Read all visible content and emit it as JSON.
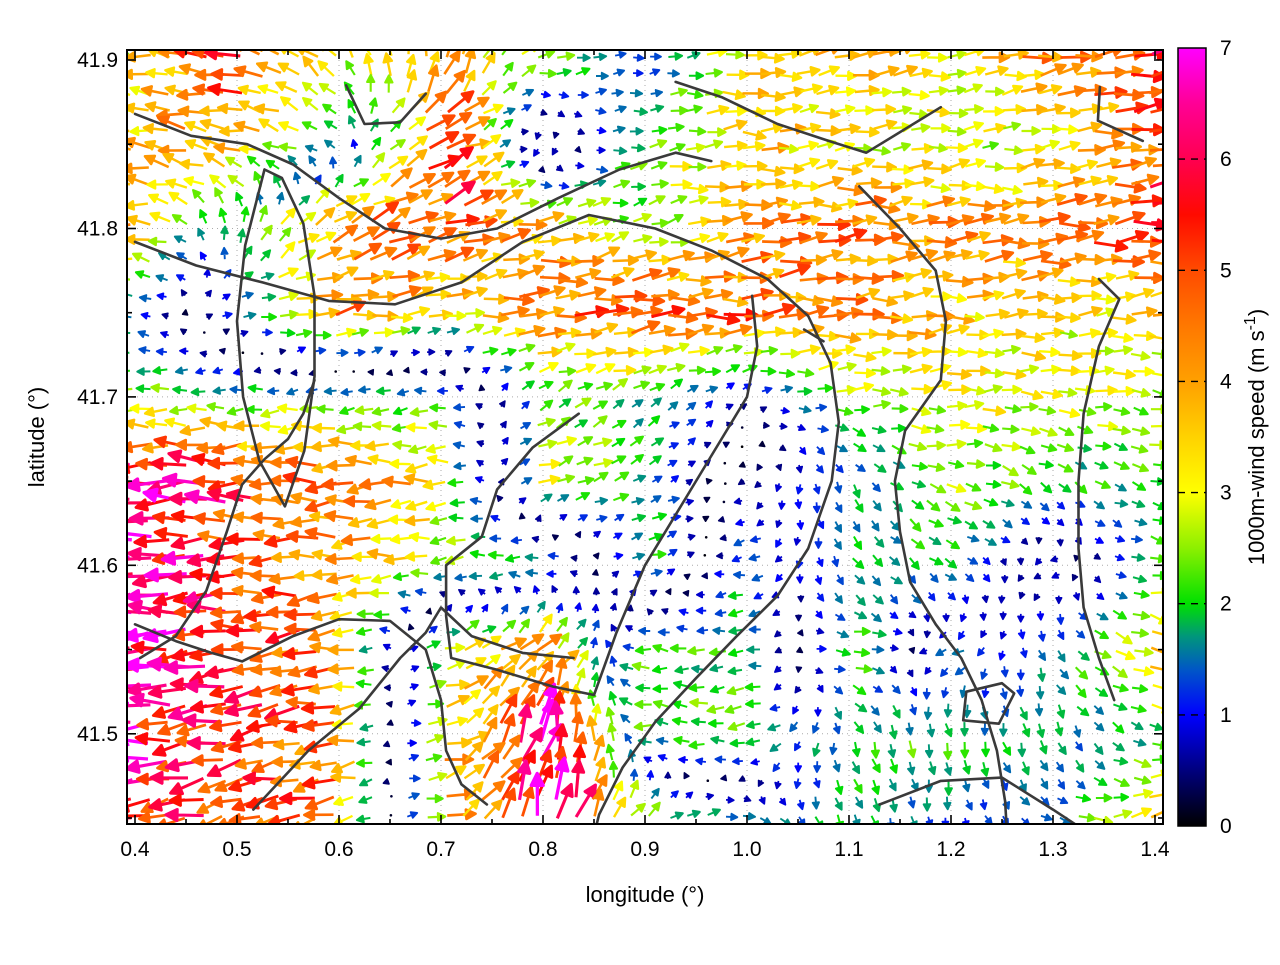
{
  "figure": {
    "background": "#ffffff",
    "xlabel": "longitude (°)",
    "ylabel": "latitude (°)",
    "colorbar_label_prefix": "1000m-wind speed (m s",
    "colorbar_label_sup": "-1",
    "colorbar_label_suffix": ")"
  },
  "chart_data": {
    "type": "quiver",
    "title": "",
    "xlabel": "longitude (°)",
    "ylabel": "latitude (°)",
    "xlim": [
      0.4,
      1.4
    ],
    "ylim": [
      41.45,
      41.9
    ],
    "grid": true,
    "x_ticks": {
      "values": [
        0.4,
        0.5,
        0.6,
        0.7,
        0.8,
        0.9,
        1.0,
        1.1,
        1.2,
        1.3,
        1.4
      ],
      "labels": [
        "0.4",
        "0.5",
        "0.6",
        "0.7",
        "0.8",
        "0.9",
        "1.0",
        "1.1",
        "1.2",
        "1.3",
        "1.4"
      ]
    },
    "y_ticks": {
      "values": [
        41.5,
        41.6,
        41.7,
        41.8,
        41.9
      ],
      "labels": [
        "41.5",
        "41.6",
        "41.7",
        "41.8",
        "41.9"
      ]
    },
    "minor_tick_step": 0.05,
    "colorbar": {
      "label": "1000m-wind speed (m s⁻¹)",
      "min": 0,
      "max": 7,
      "ticks": [
        0,
        1,
        2,
        3,
        4,
        5,
        6,
        7
      ],
      "colormap": [
        [
          0,
          "#000000"
        ],
        [
          0.5,
          "#00007d"
        ],
        [
          1,
          "#0000ff"
        ],
        [
          1.4,
          "#0055c8"
        ],
        [
          1.7,
          "#00957d"
        ],
        [
          2,
          "#00e000"
        ],
        [
          2.5,
          "#8cf000"
        ],
        [
          3,
          "#ffff00"
        ],
        [
          3.5,
          "#ffd200"
        ],
        [
          4,
          "#ffa000"
        ],
        [
          4.5,
          "#ff7800"
        ],
        [
          5,
          "#ff4b00"
        ],
        [
          5.5,
          "#ff0a00"
        ],
        [
          6,
          "#ff0050"
        ],
        [
          6.5,
          "#ff0096"
        ],
        [
          7,
          "#ff00ff"
        ]
      ]
    },
    "wind_grid": {
      "comment": "coarse (u,v) wind components in m/s read from the arrows; lon columns x lat rows",
      "lons": [
        0.4,
        0.5,
        0.6,
        0.7,
        0.8,
        0.9,
        1.0,
        1.1,
        1.2,
        1.3,
        1.4
      ],
      "lats": [
        41.9,
        41.85,
        41.8,
        41.75,
        41.7,
        41.65,
        41.6,
        41.55,
        41.5,
        41.45
      ],
      "uv": [
        [
          [
            -3,
            0.3
          ],
          [
            -5,
            0.8
          ],
          [
            -2,
            2.5
          ],
          [
            1,
            4
          ],
          [
            2.5,
            0.5
          ],
          [
            1,
            0.2
          ],
          [
            3.5,
            0.2
          ],
          [
            3.5,
            0.5
          ],
          [
            3,
            0.4
          ],
          [
            4.5,
            0.6
          ],
          [
            5.5,
            0.8
          ]
        ],
        [
          [
            -3.5,
            0.3
          ],
          [
            -4,
            0.8
          ],
          [
            -1.2,
            0.8
          ],
          [
            5,
            2.5
          ],
          [
            -1,
            -0.8
          ],
          [
            2.5,
            0.3
          ],
          [
            3.5,
            0.1
          ],
          [
            3,
            0.3
          ],
          [
            2.5,
            0.3
          ],
          [
            3,
            0.4
          ],
          [
            5,
            0.5
          ]
        ],
        [
          [
            -4,
            0.3
          ],
          [
            0.3,
            2.2
          ],
          [
            4,
            2
          ],
          [
            4.5,
            1.5
          ],
          [
            3.5,
            0.8
          ],
          [
            2.2,
            0.8
          ],
          [
            4,
            0.3
          ],
          [
            4.5,
            0.3
          ],
          [
            4,
            0.2
          ],
          [
            4.5,
            0.3
          ],
          [
            5,
            0.4
          ]
        ],
        [
          [
            -1.2,
            0.2
          ],
          [
            1.5,
            0.3
          ],
          [
            4.5,
            0.8
          ],
          [
            3,
            0.5
          ],
          [
            4.5,
            0.5
          ],
          [
            5,
            0.5
          ],
          [
            4.5,
            0.4
          ],
          [
            4,
            0.3
          ],
          [
            3.5,
            0.3
          ],
          [
            3,
            0.3
          ],
          [
            3.5,
            0.4
          ]
        ],
        [
          [
            -2.5,
            0.1
          ],
          [
            -2,
            -0.2
          ],
          [
            -2,
            -0.3
          ],
          [
            -2,
            -0.2
          ],
          [
            2,
            1
          ],
          [
            1.5,
            1
          ],
          [
            0.5,
            0.3
          ],
          [
            2.5,
            0
          ],
          [
            3,
            0.2
          ],
          [
            2.8,
            -0.3
          ],
          [
            2.5,
            -0.5
          ]
        ],
        [
          [
            -6.5,
            0
          ],
          [
            -5.5,
            0
          ],
          [
            -4.5,
            -0.2
          ],
          [
            -3.5,
            -0.2
          ],
          [
            3,
            1
          ],
          [
            1.5,
            0.8
          ],
          [
            -0.5,
            -0.3
          ],
          [
            0.5,
            -1.5
          ],
          [
            2.5,
            -0.5
          ],
          [
            1.5,
            -1
          ],
          [
            2,
            -0.5
          ]
        ],
        [
          [
            -7,
            0
          ],
          [
            -5,
            -0.3
          ],
          [
            -4,
            -0.3
          ],
          [
            -2.5,
            -0.2
          ],
          [
            -2.2,
            -0.2
          ],
          [
            2,
            0.5
          ],
          [
            -1.5,
            -0.3
          ],
          [
            1,
            -1.5
          ],
          [
            1.5,
            -1
          ],
          [
            -1,
            -0.3
          ],
          [
            2,
            -0.5
          ]
        ],
        [
          [
            -7,
            -0.3
          ],
          [
            -5.5,
            -0.5
          ],
          [
            -4.5,
            -0.5
          ],
          [
            3,
            0.8
          ],
          [
            3,
            2.5
          ],
          [
            -2,
            0.3
          ],
          [
            -2,
            -0.3
          ],
          [
            2.5,
            0
          ],
          [
            -1.5,
            -0.5
          ],
          [
            1,
            -1.5
          ],
          [
            3.5,
            -0.5
          ]
        ],
        [
          [
            -6,
            -0.5
          ],
          [
            -5,
            -0.8
          ],
          [
            -4.5,
            -0.8
          ],
          [
            3.5,
            0.5
          ],
          [
            1.5,
            6.3
          ],
          [
            -2,
            0.2
          ],
          [
            -2.5,
            -0.2
          ],
          [
            0.5,
            -2
          ],
          [
            0.5,
            -2
          ],
          [
            0.3,
            -1.5
          ],
          [
            2,
            -0.8
          ]
        ],
        [
          [
            -5.5,
            -1
          ],
          [
            -5,
            -1.2
          ],
          [
            -4.5,
            -1
          ],
          [
            4,
            1
          ],
          [
            1.5,
            6.5
          ],
          [
            2,
            1.5
          ],
          [
            1.5,
            -0.5
          ],
          [
            0.5,
            -1.8
          ],
          [
            0.3,
            -1.2
          ],
          [
            1.5,
            -0.8
          ],
          [
            3.5,
            1
          ]
        ]
      ]
    },
    "contours": [
      [
        [
          0.4,
          41.868
        ],
        [
          0.455,
          41.855
        ],
        [
          0.51,
          41.85
        ],
        [
          0.555,
          41.838
        ],
        [
          0.6,
          41.818
        ],
        [
          0.645,
          41.8
        ],
        [
          0.7,
          41.794
        ],
        [
          0.755,
          41.8
        ],
        [
          0.815,
          41.818
        ],
        [
          0.875,
          41.835
        ],
        [
          0.93,
          41.845
        ],
        [
          0.965,
          41.84
        ]
      ],
      [
        [
          0.4,
          41.792
        ],
        [
          0.46,
          41.778
        ],
        [
          0.525,
          41.768
        ],
        [
          0.59,
          41.757
        ],
        [
          0.655,
          41.755
        ],
        [
          0.72,
          41.768
        ],
        [
          0.78,
          41.792
        ],
        [
          0.845,
          41.808
        ],
        [
          0.91,
          41.8
        ],
        [
          0.965,
          41.787
        ],
        [
          1.02,
          41.77
        ],
        [
          1.06,
          41.748
        ],
        [
          1.082,
          41.72
        ],
        [
          1.09,
          41.685
        ],
        [
          1.083,
          41.65
        ],
        [
          1.06,
          41.61
        ],
        [
          1.03,
          41.582
        ],
        [
          0.99,
          41.558
        ],
        [
          0.95,
          41.533
        ],
        [
          0.91,
          41.507
        ],
        [
          0.878,
          41.48
        ],
        [
          0.855,
          41.452
        ],
        [
          0.85,
          41.44
        ]
      ],
      [
        [
          0.527,
          41.835
        ],
        [
          0.508,
          41.79
        ],
        [
          0.5,
          41.745
        ],
        [
          0.506,
          41.7
        ],
        [
          0.522,
          41.662
        ],
        [
          0.547,
          41.635
        ],
        [
          0.566,
          41.668
        ],
        [
          0.576,
          41.712
        ],
        [
          0.576,
          41.76
        ],
        [
          0.565,
          41.803
        ],
        [
          0.544,
          41.83
        ],
        [
          0.527,
          41.835
        ]
      ],
      [
        [
          0.835,
          41.69
        ],
        [
          0.79,
          41.67
        ],
        [
          0.755,
          41.645
        ],
        [
          0.74,
          41.617
        ],
        [
          0.705,
          41.6
        ],
        [
          0.705,
          41.57
        ],
        [
          0.71,
          41.545
        ],
        [
          0.755,
          41.538
        ],
        [
          0.81,
          41.528
        ],
        [
          0.85,
          41.523
        ],
        [
          0.872,
          41.56
        ],
        [
          0.9,
          41.6
        ],
        [
          0.94,
          41.64
        ],
        [
          0.975,
          41.675
        ],
        [
          1.0,
          41.7
        ],
        [
          1.01,
          41.73
        ],
        [
          1.005,
          41.76
        ]
      ],
      [
        [
          0.405,
          41.545
        ],
        [
          0.44,
          41.558
        ],
        [
          0.47,
          41.585
        ],
        [
          0.49,
          41.62
        ],
        [
          0.505,
          41.648
        ],
        [
          0.527,
          41.663
        ],
        [
          0.55,
          41.675
        ],
        [
          0.565,
          41.69
        ],
        [
          0.576,
          41.71
        ]
      ],
      [
        [
          0.516,
          41.455
        ],
        [
          0.57,
          41.49
        ],
        [
          0.62,
          41.515
        ],
        [
          0.66,
          41.545
        ],
        [
          0.685,
          41.56
        ],
        [
          0.7,
          41.575
        ],
        [
          0.73,
          41.558
        ],
        [
          0.78,
          41.548
        ],
        [
          0.83,
          41.545
        ]
      ],
      [
        [
          0.4,
          41.565
        ],
        [
          0.44,
          41.555
        ],
        [
          0.475,
          41.548
        ],
        [
          0.505,
          41.543
        ],
        [
          0.555,
          41.558
        ],
        [
          0.6,
          41.568
        ],
        [
          0.65,
          41.567
        ],
        [
          0.685,
          41.55
        ],
        [
          0.7,
          41.52
        ],
        [
          0.705,
          41.49
        ],
        [
          0.72,
          41.47
        ],
        [
          0.745,
          41.458
        ]
      ],
      [
        [
          1.11,
          41.825
        ],
        [
          1.15,
          41.8
        ],
        [
          1.185,
          41.775
        ],
        [
          1.195,
          41.745
        ],
        [
          1.19,
          41.71
        ],
        [
          1.155,
          41.68
        ],
        [
          1.145,
          41.65
        ],
        [
          1.15,
          41.62
        ],
        [
          1.16,
          41.59
        ],
        [
          1.185,
          41.565
        ],
        [
          1.21,
          41.545
        ],
        [
          1.23,
          41.52
        ],
        [
          1.245,
          41.49
        ],
        [
          1.253,
          41.46
        ],
        [
          1.255,
          41.44
        ]
      ],
      [
        [
          1.345,
          41.77
        ],
        [
          1.365,
          41.758
        ],
        [
          1.345,
          41.73
        ],
        [
          1.33,
          41.69
        ],
        [
          1.325,
          41.65
        ],
        [
          1.325,
          41.61
        ],
        [
          1.33,
          41.575
        ],
        [
          1.345,
          41.545
        ],
        [
          1.36,
          41.52
        ]
      ],
      [
        [
          1.346,
          41.884
        ],
        [
          1.344,
          41.864
        ],
        [
          1.388,
          41.852
        ]
      ],
      [
        [
          0.607,
          41.885
        ],
        [
          0.625,
          41.862
        ],
        [
          0.66,
          41.863
        ],
        [
          0.685,
          41.88
        ]
      ],
      [
        [
          0.93,
          41.887
        ],
        [
          0.975,
          41.878
        ],
        [
          1.03,
          41.862
        ],
        [
          1.08,
          41.852
        ],
        [
          1.117,
          41.845
        ],
        [
          1.19,
          41.872
        ]
      ],
      [
        [
          1.212,
          41.508
        ],
        [
          1.247,
          41.506
        ],
        [
          1.262,
          41.524
        ],
        [
          1.25,
          41.53
        ],
        [
          1.215,
          41.525
        ],
        [
          1.212,
          41.508
        ]
      ],
      [
        [
          1.13,
          41.458
        ],
        [
          1.19,
          41.472
        ],
        [
          1.25,
          41.474
        ],
        [
          1.3,
          41.455
        ],
        [
          1.33,
          41.443
        ]
      ],
      [
        [
          1.056,
          41.74
        ],
        [
          1.075,
          41.733
        ]
      ]
    ]
  }
}
